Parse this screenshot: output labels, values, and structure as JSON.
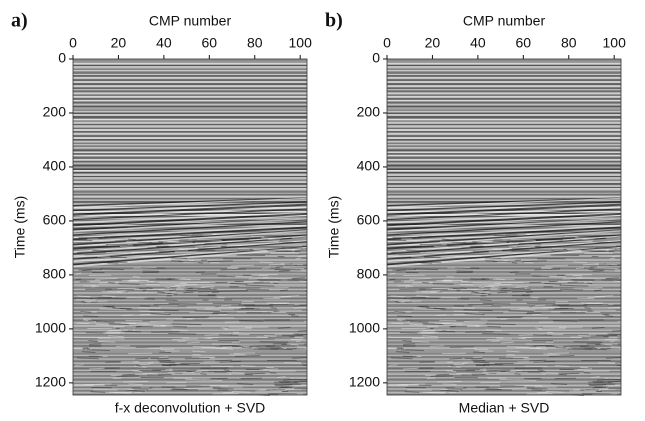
{
  "chart_data": [
    {
      "type": "seismic",
      "panel_label": "a)",
      "xlabel": "CMP number",
      "ylabel": "Time (ms)",
      "caption": "f-x deconvolution + SVD",
      "xlim": [
        0,
        103
      ],
      "xticks": [
        0,
        20,
        40,
        60,
        80,
        100
      ],
      "ylim": [
        0,
        1245
      ],
      "yticks": [
        0,
        200,
        400,
        600,
        800,
        1000,
        1200
      ],
      "y_inverted": true
    },
    {
      "type": "seismic",
      "panel_label": "b)",
      "xlabel": "CMP number",
      "ylabel": "Time (ms)",
      "caption": "Median + SVD",
      "xlim": [
        0,
        103
      ],
      "xticks": [
        0,
        20,
        40,
        60,
        80,
        100
      ],
      "ylim": [
        0,
        1245
      ],
      "yticks": [
        0,
        200,
        400,
        600,
        800,
        1000,
        1200
      ],
      "y_inverted": true
    }
  ]
}
